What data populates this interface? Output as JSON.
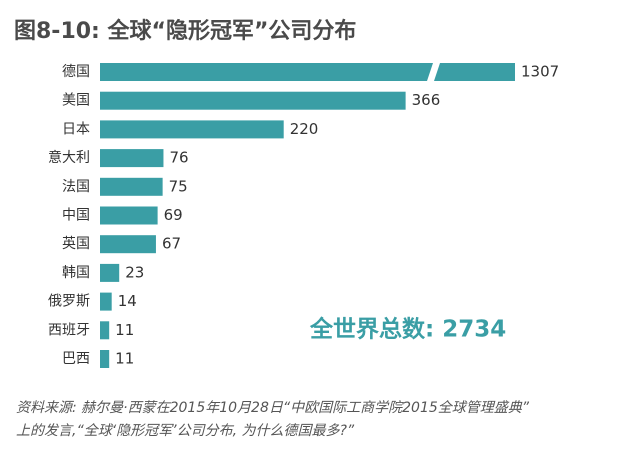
{
  "chart_data": {
    "type": "bar",
    "orientation": "horizontal",
    "title": "图8-10: 全球“隐形冠军”公司分布",
    "categories": [
      "德国",
      "美国",
      "日本",
      "意大利",
      "法国",
      "中国",
      "英国",
      "韩国",
      "俄罗斯",
      "西班牙",
      "巴西"
    ],
    "values": [
      1307,
      366,
      220,
      76,
      75,
      69,
      67,
      23,
      14,
      11,
      11
    ],
    "color": "#3a9ea5",
    "annotation": "全世界总数: 2734",
    "source": [
      "资料来源: 赫尔曼·西蒙在2015年10月28日“中欧国际工商学院2015全球管理盛典”",
      "上的发言,“全球‘隐形冠军’公司分布, 为什么德国最多?”"
    ]
  }
}
